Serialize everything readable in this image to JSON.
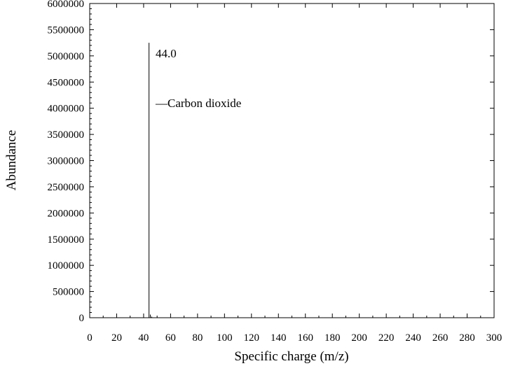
{
  "chart_data": {
    "type": "bar",
    "xlabel": "Specific charge (m/z)",
    "ylabel": "Abundance",
    "xlim": [
      0,
      300
    ],
    "ylim": [
      0,
      6000000
    ],
    "x_ticks": [
      0,
      20,
      40,
      60,
      80,
      100,
      120,
      140,
      160,
      180,
      200,
      220,
      240,
      260,
      280,
      300
    ],
    "y_ticks": [
      0,
      500000,
      1000000,
      1500000,
      2000000,
      2500000,
      3000000,
      3500000,
      4000000,
      4500000,
      5000000,
      5500000,
      6000000
    ],
    "grid": false,
    "legend": "none",
    "series": [
      {
        "x": [
          44.0,
          45.0,
          46.0
        ],
        "values": [
          5250000,
          60000,
          20000
        ]
      }
    ],
    "annotations": [
      {
        "text": "44.0",
        "x": 44.0
      },
      {
        "text": "—Carbon dioxide",
        "x": 44.0
      }
    ],
    "colors": {
      "axis": "#000000",
      "bars": "#000000"
    }
  }
}
